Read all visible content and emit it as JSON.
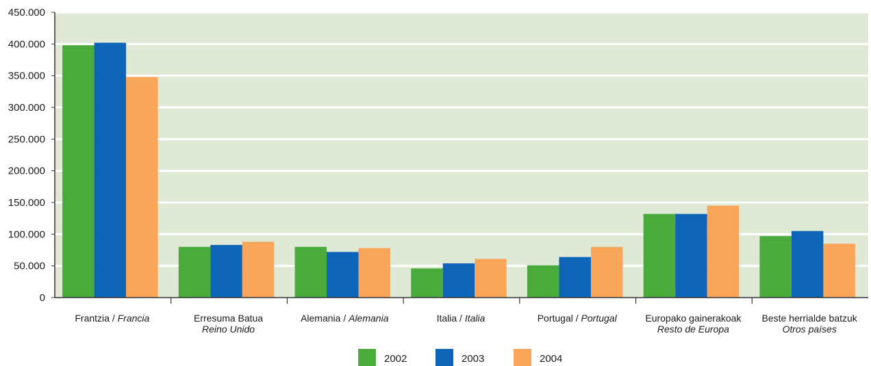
{
  "chart_data": {
    "type": "bar",
    "title": "",
    "xlabel": "",
    "ylabel": "",
    "ylim": [
      0,
      450000
    ],
    "yticks": [
      {
        "value": 0,
        "label": "0"
      },
      {
        "value": 50000,
        "label": "50.000"
      },
      {
        "value": 100000,
        "label": "100.000"
      },
      {
        "value": 150000,
        "label": "150.000"
      },
      {
        "value": 200000,
        "label": "200.000"
      },
      {
        "value": 250000,
        "label": "250.000"
      },
      {
        "value": 300000,
        "label": "300.000"
      },
      {
        "value": 350000,
        "label": "350.000"
      },
      {
        "value": 400000,
        "label": "400.000"
      },
      {
        "value": 450000,
        "label": "450.000"
      }
    ],
    "grid": true,
    "legend_position": "bottom",
    "plot_background": "#dfe9d6",
    "categories": [
      {
        "eu": "Frantzia / ",
        "es": "Francia",
        "inline": true
      },
      {
        "eu": "Erresuma Batua",
        "es": "Reino Unido",
        "inline": false
      },
      {
        "eu": "Alemania / ",
        "es": "Alemania",
        "inline": true
      },
      {
        "eu": "Italia / ",
        "es": "Italia",
        "inline": true
      },
      {
        "eu": "Portugal / ",
        "es": "Portugal",
        "inline": true
      },
      {
        "eu": "Europako gainerakoak",
        "es": "Resto de Europa",
        "inline": false
      },
      {
        "eu": "Beste herrialde batzuk",
        "es": "Otros países",
        "inline": false
      }
    ],
    "series": [
      {
        "name": "2002",
        "color": "#4aab3c",
        "values": [
          398000,
          80000,
          80000,
          46000,
          51000,
          132000,
          97000
        ]
      },
      {
        "name": "2003",
        "color": "#0e64b6",
        "values": [
          402000,
          83000,
          72000,
          54000,
          64000,
          132000,
          105000
        ]
      },
      {
        "name": "2004",
        "color": "#f9a65a",
        "values": [
          348000,
          88000,
          78000,
          61000,
          80000,
          145000,
          85000
        ]
      }
    ]
  }
}
